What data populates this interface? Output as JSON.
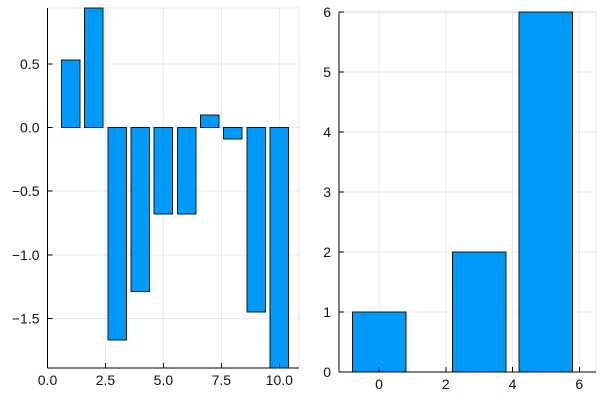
{
  "figure": {
    "background": "#ffffff"
  },
  "chart_data": [
    {
      "type": "bar",
      "title": "",
      "xlabel": "",
      "ylabel": "",
      "x": [
        1,
        2,
        3,
        4,
        5,
        6,
        7,
        8,
        9,
        10
      ],
      "values": [
        0.53,
        0.94,
        -1.67,
        -1.29,
        -0.68,
        -0.68,
        0.1,
        -0.09,
        -1.45,
        -1.89
      ],
      "bar_width": 0.8,
      "xlim": [
        0,
        10.85
      ],
      "ylim": [
        -1.89,
        0.94
      ],
      "xtick_values": [
        0,
        2.5,
        5,
        7.5,
        10
      ],
      "xtick_labels": [
        "0.0",
        "2.5",
        "5.0",
        "7.5",
        "10.0"
      ],
      "ytick_values": [
        0.5,
        0,
        -0.5,
        -1,
        -1.5
      ],
      "ytick_labels": [
        "0.5",
        "0.0",
        "−0.5",
        "−1.0",
        "−1.5"
      ],
      "grid": true,
      "legend": "none",
      "bar_fill": "#009afa",
      "bar_stroke": "#14181c",
      "grid_color": "rgba(0,0,0,0.08)",
      "frame_color": "rgba(0,0,0,0.10)",
      "axis_color": "#000000"
    },
    {
      "type": "bar",
      "title": "",
      "xlabel": "",
      "ylabel": "",
      "x": [
        0,
        3,
        5
      ],
      "values": [
        1,
        2,
        6
      ],
      "bar_width": 1.6,
      "xlim": [
        -1.2,
        6.5
      ],
      "ylim": [
        0,
        6
      ],
      "xtick_values": [
        0,
        2,
        4,
        6
      ],
      "xtick_labels": [
        "0",
        "2",
        "4",
        "6"
      ],
      "ytick_values": [
        0,
        1,
        2,
        3,
        4,
        5,
        6
      ],
      "ytick_labels": [
        "0",
        "1",
        "2",
        "3",
        "4",
        "5",
        "6"
      ],
      "grid": true,
      "legend": "none",
      "bar_fill": "#009afa",
      "bar_stroke": "#14181c",
      "grid_color": "rgba(0,0,0,0.08)",
      "frame_color": "rgba(0,0,0,0.10)",
      "axis_color": "#000000"
    }
  ]
}
